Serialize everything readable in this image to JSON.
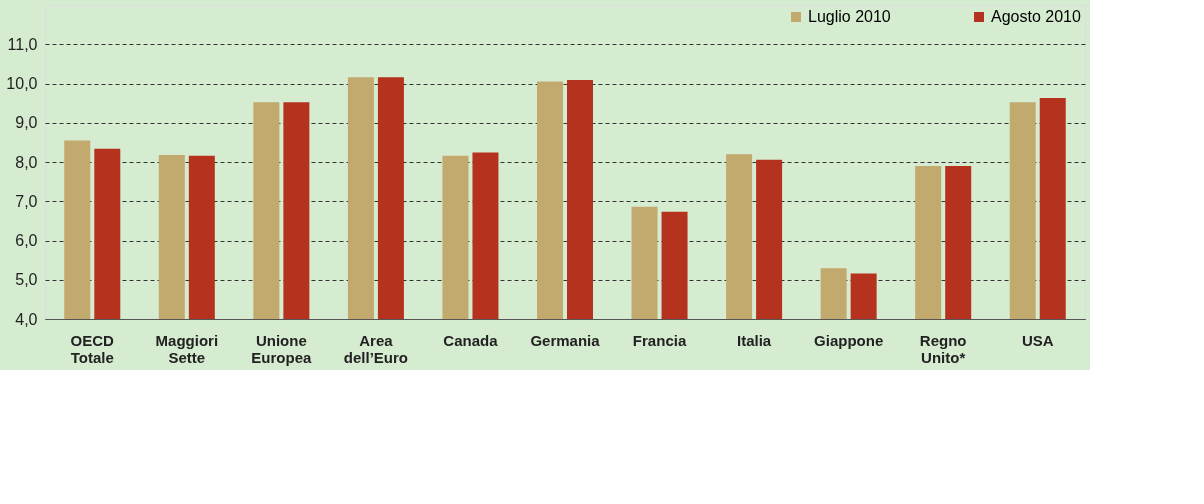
{
  "chart_data": {
    "type": "bar",
    "categories": [
      "OECD\nTotale",
      "Maggiori\nSette",
      "Unione\nEuropea",
      "Area\ndell’Euro",
      "Canada",
      "Germania",
      "Francia",
      "Italia",
      "Giappone",
      "Regno\nUnito*",
      "USA"
    ],
    "series": [
      {
        "name": "Luglio 2010",
        "color": "#c2a96e",
        "values": [
          8.55,
          8.18,
          9.52,
          10.16,
          8.16,
          10.05,
          6.86,
          8.2,
          5.29,
          7.9,
          9.52
        ]
      },
      {
        "name": "Agosto 2010",
        "color": "#b5321f",
        "values": [
          8.34,
          8.16,
          9.52,
          10.16,
          8.24,
          10.09,
          6.73,
          8.06,
          5.16,
          7.9,
          9.63
        ]
      }
    ],
    "ylim": [
      4,
      12
    ],
    "yticks": [
      {
        "value": 4,
        "label": "4,0"
      },
      {
        "value": 5,
        "label": "5,0"
      },
      {
        "value": 6,
        "label": "6,0"
      },
      {
        "value": 7,
        "label": "7,0"
      },
      {
        "value": 8,
        "label": "8,0"
      },
      {
        "value": 9,
        "label": "9,0"
      },
      {
        "value": 10,
        "label": "10,0"
      },
      {
        "value": 11,
        "label": "11,0"
      }
    ],
    "grid": "y",
    "line_style": "dashed",
    "legend": "top right"
  }
}
